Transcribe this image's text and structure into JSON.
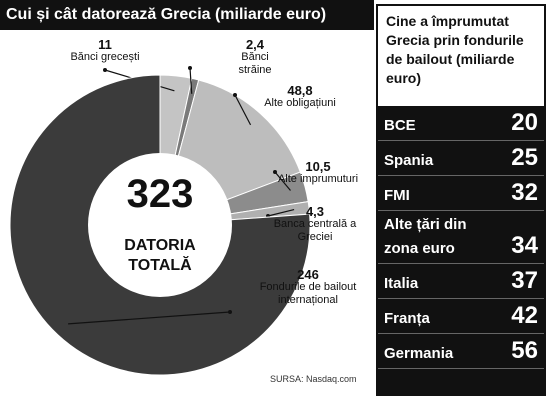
{
  "chart_data": {
    "type": "pie",
    "title": "Cui și cât datorează Grecia (miliarde euro)",
    "categories": [
      "Bănci grecești",
      "Bănci străine",
      "Alte obligațiuni",
      "Alte imprumuturi",
      "Banca centrală a Greciei",
      "Fondurile de bailout internațional"
    ],
    "values": [
      11,
      2.4,
      48.8,
      10.5,
      4.3,
      246
    ],
    "value_labels": [
      "11",
      "2,4",
      "48,8",
      "10,5",
      "4,3",
      "246"
    ],
    "colors": [
      "#c4c4c4",
      "#7a7a7a",
      "#bdbdbd",
      "#8c8c8c",
      "#b0b0b0",
      "#3b3b3b"
    ],
    "annotations": [
      "323",
      "DATORIA TOTALĂ"
    ],
    "source": "SURSA: Nasdaq.com"
  },
  "table": {
    "title": "Cine a împrumutat Grecia prin fondurile de bailout (miliarde euro)",
    "rows": [
      [
        "BCE",
        20
      ],
      [
        "Spania",
        25
      ],
      [
        "FMI",
        32
      ],
      [
        "Alte țări din zona euro",
        34
      ],
      [
        "Italia",
        37
      ],
      [
        "Franța",
        42
      ],
      [
        "Germania",
        56
      ]
    ]
  }
}
